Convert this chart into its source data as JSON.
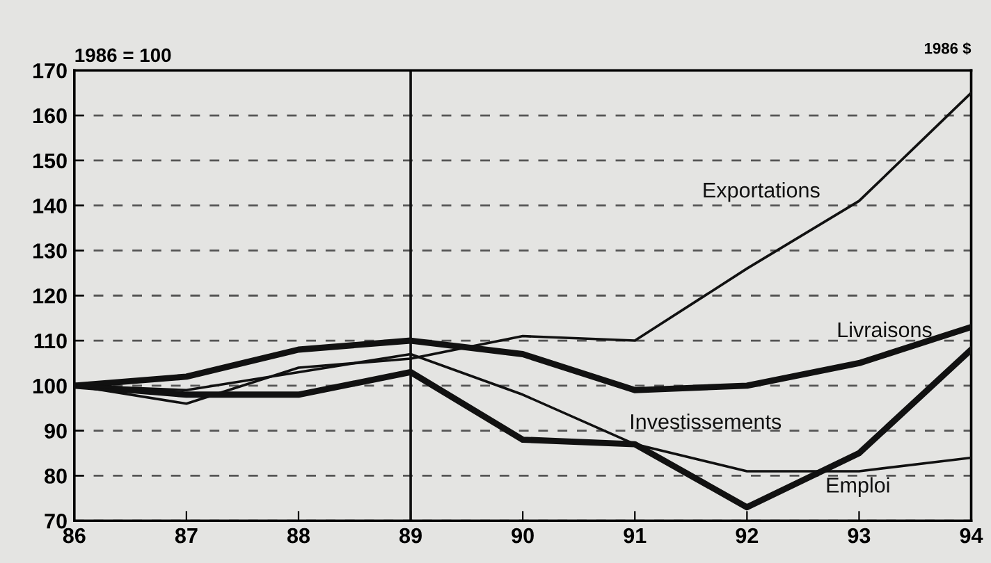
{
  "chart_data": {
    "type": "line",
    "ylabel": "1986 = 100",
    "annotations": [
      "1986 $"
    ],
    "x": [
      86,
      87,
      88,
      89,
      90,
      91,
      92,
      93,
      94
    ],
    "series": [
      {
        "name": "Exportations",
        "color": "#111111",
        "values": [
          100,
          96,
          104,
          106,
          111,
          110,
          126,
          141,
          165
        ]
      },
      {
        "name": "Livraisons",
        "color": "#111111",
        "values": [
          100,
          102,
          108,
          110,
          107,
          99,
          100,
          105,
          113
        ]
      },
      {
        "name": "Investissements",
        "color": "#111111",
        "values": [
          100,
          98,
          98,
          103,
          88,
          87,
          73,
          85,
          108
        ]
      },
      {
        "name": "Emploi",
        "color": "#111111",
        "values": [
          100,
          99,
          103,
          107,
          98,
          87,
          81,
          81,
          84
        ]
      }
    ],
    "xlim": [
      86,
      94
    ],
    "xticks": [
      86,
      87,
      88,
      89,
      90,
      91,
      92,
      93,
      94
    ],
    "ylim": [
      70,
      170
    ],
    "yticks": [
      70,
      80,
      90,
      100,
      110,
      120,
      130,
      140,
      150,
      160,
      170
    ],
    "grid": "y",
    "line_style": "solid",
    "marker": "none",
    "legend": false,
    "ref_lines": [
      {
        "axis": "x",
        "value": 89,
        "color": "#111111"
      }
    ]
  }
}
